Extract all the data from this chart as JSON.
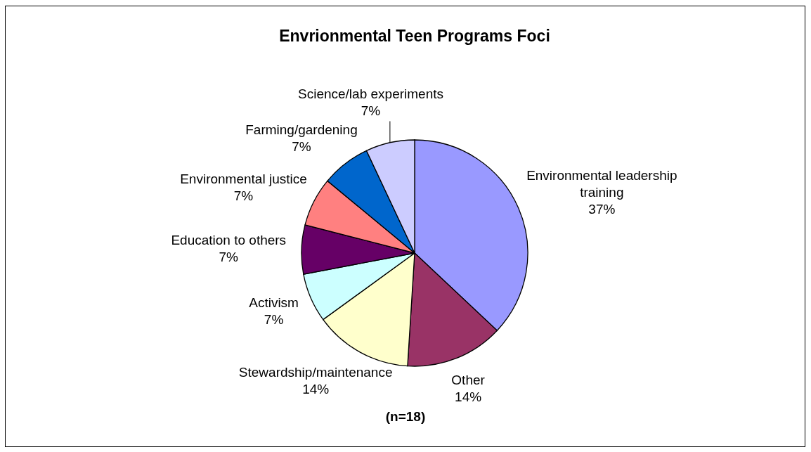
{
  "chart_data": {
    "type": "pie",
    "title": "Envrionmental Teen Programs Foci",
    "categories": [
      "Environmental leadership training",
      "Other",
      "Stewardship/maintenance",
      "Activism",
      "Education to others",
      "Environmental justice",
      "Farming/gardening",
      "Science/lab experiments"
    ],
    "values": [
      37,
      14,
      14,
      7,
      7,
      7,
      7,
      7
    ],
    "colors": [
      "#9999ff",
      "#993366",
      "#ffffcc",
      "#ccffff",
      "#660066",
      "#ff8080",
      "#0066cc",
      "#ccccff"
    ],
    "value_labels": [
      "37%",
      "14%",
      "14%",
      "7%",
      "7%",
      "7%",
      "7%",
      "7%"
    ],
    "annotations": [
      "(n=18)"
    ]
  }
}
